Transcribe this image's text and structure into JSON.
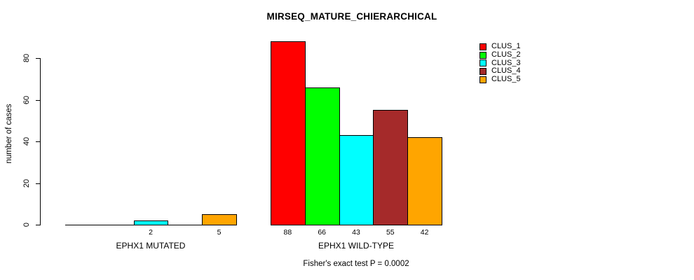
{
  "chart_data": {
    "type": "bar",
    "title": "MIRSEQ_MATURE_CHIERARCHICAL",
    "ylabel": "number of cases",
    "xlabel": "",
    "ylim": [
      0,
      88
    ],
    "yticks": [
      0,
      20,
      40,
      60,
      80
    ],
    "grid": false,
    "legend_position": "top-right",
    "legend": [
      {
        "name": "CLUS_1",
        "color": "#FF0000"
      },
      {
        "name": "CLUS_2",
        "color": "#00FF00"
      },
      {
        "name": "CLUS_3",
        "color": "#00FFFF"
      },
      {
        "name": "CLUS_4",
        "color": "#A52A2A"
      },
      {
        "name": "CLUS_5",
        "color": "#FFA500"
      }
    ],
    "categories": [
      "EPHX1 MUTATED",
      "EPHX1 WILD-TYPE"
    ],
    "series": [
      {
        "name": "CLUS_1",
        "values": [
          0,
          88
        ]
      },
      {
        "name": "CLUS_2",
        "values": [
          0,
          66
        ]
      },
      {
        "name": "CLUS_3",
        "values": [
          2,
          43
        ]
      },
      {
        "name": "CLUS_4",
        "values": [
          0,
          55
        ]
      },
      {
        "name": "CLUS_5",
        "values": [
          5,
          42
        ]
      }
    ],
    "bar_value_labels": [
      [
        "",
        "",
        "2",
        "",
        "5"
      ],
      [
        "88",
        "66",
        "43",
        "55",
        "42"
      ]
    ],
    "footnote": "Fisher's exact test P = 0.0002"
  },
  "colors": {
    "background": "#FFFFFF",
    "axis": "#000000",
    "bar_border": "#000000",
    "text": "#000000"
  }
}
